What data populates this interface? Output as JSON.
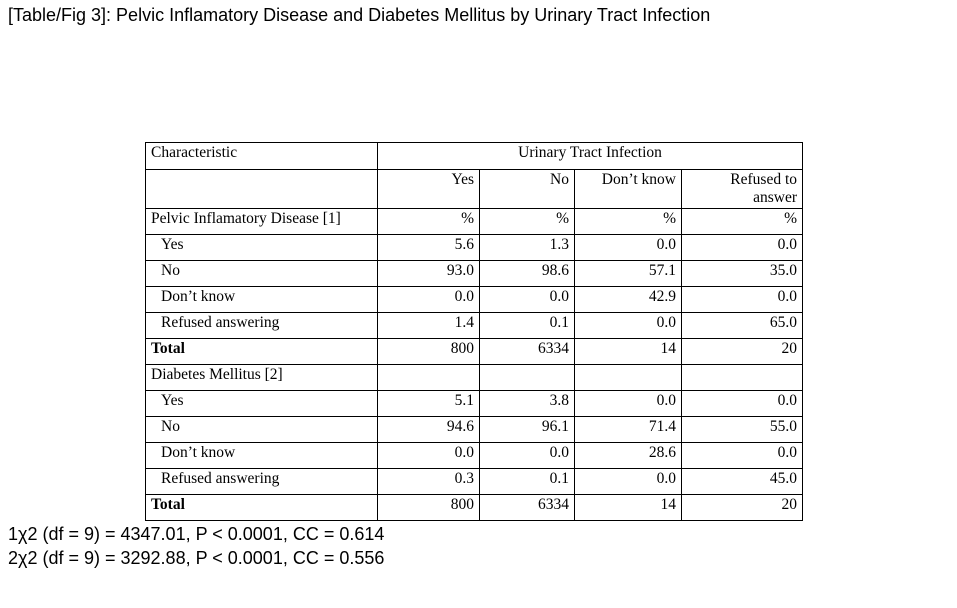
{
  "title": "[Table/Fig 3]: Pelvic Inflamatory Disease and Diabetes Mellitus by Urinary Tract Infection",
  "table": {
    "header": {
      "characteristic": "Characteristic",
      "group": "Urinary Tract Infection",
      "columns": [
        "Yes",
        "No",
        "Don’t know",
        "Refused to answer"
      ]
    },
    "sections": [
      {
        "label": "Pelvic Inflamatory Disease [1]",
        "units": [
          "%",
          "%",
          "%",
          "%"
        ],
        "rows": [
          {
            "label": "Yes",
            "values": [
              "5.6",
              "1.3",
              "0.0",
              "0.0"
            ]
          },
          {
            "label": "No",
            "values": [
              "93.0",
              "98.6",
              "57.1",
              "35.0"
            ]
          },
          {
            "label": "Don’t know",
            "values": [
              "0.0",
              "0.0",
              "42.9",
              "0.0"
            ]
          },
          {
            "label": "Refused answering",
            "values": [
              "1.4",
              "0.1",
              "0.0",
              "65.0"
            ]
          }
        ],
        "total": {
          "label": "Total",
          "values": [
            "800",
            "6334",
            "14",
            "20"
          ]
        }
      },
      {
        "label": "Diabetes Mellitus [2]",
        "units": [
          "",
          "",
          "",
          ""
        ],
        "rows": [
          {
            "label": "Yes",
            "values": [
              "5.1",
              "3.8",
              "0.0",
              "0.0"
            ]
          },
          {
            "label": "No",
            "values": [
              "94.6",
              "96.1",
              "71.4",
              "55.0"
            ]
          },
          {
            "label": "Don’t know",
            "values": [
              "0.0",
              "0.0",
              "28.6",
              "0.0"
            ]
          },
          {
            "label": "Refused answering",
            "values": [
              "0.3",
              "0.1",
              "0.0",
              "45.0"
            ]
          }
        ],
        "total": {
          "label": "Total",
          "values": [
            "800",
            "6334",
            "14",
            "20"
          ]
        }
      }
    ]
  },
  "footnotes": [
    "1χ2 (df = 9) = 4347.01, P < 0.0001, CC = 0.614",
    "2χ2 (df = 9) = 3292.88, P < 0.0001, CC = 0.556"
  ]
}
